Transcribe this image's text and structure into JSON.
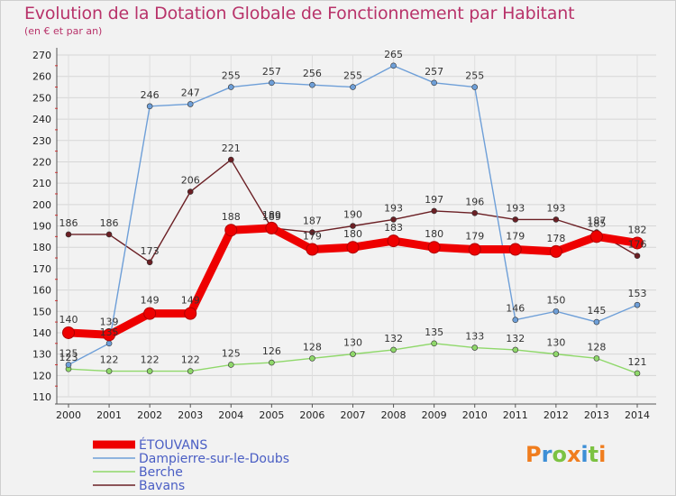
{
  "chart_data": {
    "type": "line",
    "title": "Evolution de la Dotation Globale de Fonctionnement par Habitant",
    "subtitle": "(en € et par an)",
    "xlabel": "",
    "ylabel": "",
    "ylim": [
      110,
      270
    ],
    "yticks": [
      110,
      120,
      130,
      140,
      150,
      160,
      170,
      180,
      190,
      200,
      210,
      220,
      230,
      240,
      250,
      260,
      270
    ],
    "categories": [
      "2000",
      "2001",
      "2002",
      "2003",
      "2004",
      "2005",
      "2006",
      "2007",
      "2008",
      "2009",
      "2010",
      "2011",
      "2012",
      "2013",
      "2014"
    ],
    "series": [
      {
        "name": "Bavans",
        "color": "#6b1f24",
        "values": [
          186,
          186,
          173,
          206,
          221,
          189,
          187,
          190,
          193,
          197,
          196,
          193,
          193,
          187,
          176
        ]
      },
      {
        "name": "Berche",
        "color": "#8fd86a",
        "values": [
          123,
          122,
          122,
          122,
          125,
          126,
          128,
          130,
          132,
          135,
          133,
          132,
          130,
          128,
          121
        ]
      },
      {
        "name": "Dampierre-sur-le-Doubs",
        "color": "#6e9fd8",
        "values": [
          125,
          135,
          246,
          247,
          255,
          257,
          256,
          255,
          265,
          257,
          255,
          146,
          150,
          145,
          153
        ]
      },
      {
        "name": "ÉTOUVANS",
        "color": "#ee0000",
        "values": [
          140,
          139,
          149,
          149,
          188,
          189,
          179,
          180,
          183,
          180,
          179,
          179,
          178,
          185,
          182
        ]
      }
    ],
    "legend": [
      "ÉTOUVANS",
      "Dampierre-sur-le-Doubs",
      "Berche",
      "Bavans"
    ],
    "legend_colors": {
      "ÉTOUVANS": "#ee0000",
      "Dampierre-sur-le-Doubs": "#6e9fd8",
      "Berche": "#8fd86a",
      "Bavans": "#6b1f24"
    },
    "legend_text_colors": {
      "ÉTOUVANS": "#4a5ec4",
      "Dampierre-sur-le-Doubs": "#4a5ec4",
      "Berche": "#4a5ec4",
      "Bavans": "#4a5ec4"
    },
    "legend_position": "bottom-left",
    "grid": true
  },
  "logo": {
    "text": "Proxiti",
    "letters": [
      "P",
      "r",
      "o",
      "x",
      "i",
      "t",
      "i"
    ],
    "colors": [
      "#f07d1e",
      "#3d8fd6",
      "#7cc242",
      "#f07d1e",
      "#3d8fd6",
      "#7cc242",
      "#f07d1e"
    ]
  }
}
